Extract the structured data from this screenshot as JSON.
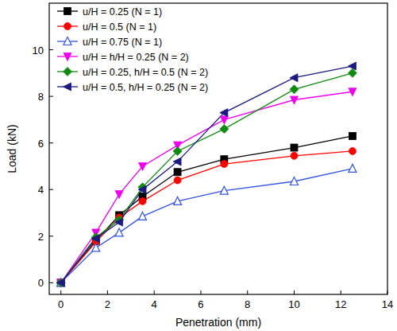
{
  "chart_data": {
    "type": "line",
    "x_label": "Penetration (mm)",
    "y_label": "Load (kN)",
    "x": [
      0,
      1.5,
      2.5,
      3.5,
      5,
      7,
      10,
      12.5
    ],
    "xlim": [
      -0.5,
      14
    ],
    "xticks": [
      0,
      2,
      4,
      6,
      8,
      10,
      12,
      14
    ],
    "ylim": [
      -0.5,
      12
    ],
    "yticks": [
      0,
      2,
      4,
      6,
      8,
      10
    ],
    "legend": "upper left",
    "series": [
      {
        "name": "u/H = 0.25 (N = 1)",
        "color": "#000000",
        "marker": "square",
        "values": [
          0,
          1.8,
          2.9,
          3.7,
          4.75,
          5.3,
          5.8,
          6.3
        ]
      },
      {
        "name": "u/H = 0.5   (N = 1)",
        "color": "#ff0000",
        "marker": "circle",
        "values": [
          0,
          1.75,
          2.8,
          3.5,
          4.4,
          5.1,
          5.45,
          5.65
        ]
      },
      {
        "name": "u/H = 0.75 (N = 1)",
        "color": "#3355dd",
        "marker": "open-triangle",
        "values": [
          0,
          1.5,
          2.15,
          2.85,
          3.5,
          3.95,
          4.35,
          4.9
        ]
      },
      {
        "name": "u/H = h/H = 0.25 (N = 2)",
        "color": "#ee00ee",
        "marker": "triangle-down",
        "values": [
          0,
          2.15,
          3.8,
          5.0,
          5.9,
          7.0,
          7.85,
          8.2
        ]
      },
      {
        "name": "u/H = 0.25, h/H = 0.5 (N = 2)",
        "color": "#108a10",
        "marker": "diamond",
        "values": [
          0,
          1.95,
          2.7,
          4.1,
          5.65,
          6.6,
          8.3,
          9.0
        ]
      },
      {
        "name": "u/H = 0.5, h/H = 0.25 (N = 2)",
        "color": "#1a1a80",
        "marker": "triangle-left",
        "values": [
          0,
          1.9,
          2.6,
          4.0,
          5.2,
          7.3,
          8.8,
          9.3
        ]
      }
    ]
  }
}
